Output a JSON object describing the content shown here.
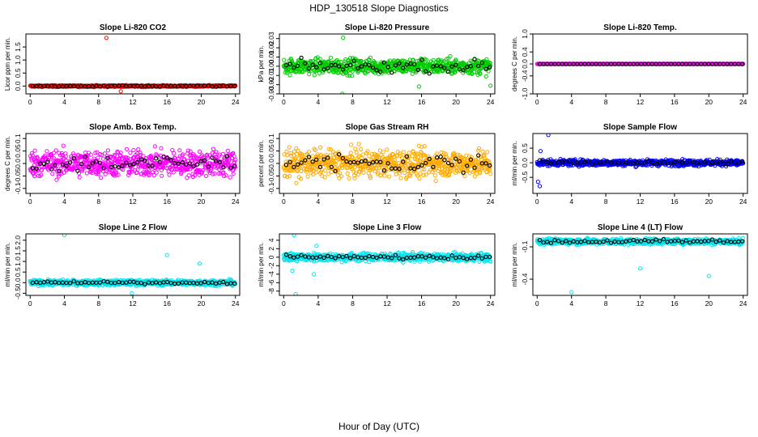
{
  "figure": {
    "title": "HDP_130518  Slope Diagnostics",
    "xlabel": "Hour of Day (UTC)"
  },
  "colors": {
    "overlay": "#000000"
  },
  "chart_data": [
    {
      "type": "scatter",
      "title": "Slope Li-820 CO2",
      "ylabel": "Licor ppm per min.",
      "color": "#ff0000",
      "ylim": [
        -0.3,
        2.0
      ],
      "yticks": [
        0,
        0.5,
        1.0,
        1.5
      ],
      "xlim": [
        -0.5,
        24.5
      ],
      "xticks": [
        0,
        4,
        8,
        12,
        16,
        20,
        24
      ],
      "center": 0,
      "spread": 0.03,
      "overlay_spread": 0.02,
      "outliers": [
        [
          8.9,
          1.85
        ],
        [
          10.6,
          -0.2
        ]
      ]
    },
    {
      "type": "scatter",
      "title": "Slope Li-820 Pressure",
      "ylabel": "kPa per min.",
      "color": "#00cc00",
      "ylim": [
        -0.03,
        0.035
      ],
      "yticks": [
        -0.03,
        -0.02,
        -0.01,
        0.0,
        0.01,
        0.02,
        0.03
      ],
      "xlim": [
        -0.5,
        24.5
      ],
      "xticks": [
        0,
        4,
        8,
        12,
        16,
        20,
        24
      ],
      "center": 0,
      "spread": 0.008,
      "overlay_spread": 0.006,
      "outliers": [
        [
          6.9,
          0.031
        ],
        [
          6.8,
          -0.03
        ],
        [
          15.7,
          -0.022
        ],
        [
          24.0,
          -0.021
        ]
      ]
    },
    {
      "type": "scatter",
      "title": "Slope Li-820 Temp.",
      "ylabel": "degrees C per min.",
      "color": "#ff00ff",
      "ylim": [
        -1.0,
        1.0
      ],
      "yticks": [
        -1.0,
        -0.4,
        0.0,
        0.4,
        1.0
      ],
      "xlim": [
        -0.5,
        24.5
      ],
      "xticks": [
        0,
        4,
        8,
        12,
        16,
        20,
        24
      ],
      "center": 0,
      "spread": 0.0,
      "overlay_spread": 0.0,
      "outliers": []
    },
    {
      "type": "scatter",
      "title": "Slope Amb. Box Temp.",
      "ylabel": "degrees C per min.",
      "color": "#ff00ff",
      "ylim": [
        -0.12,
        0.12
      ],
      "yticks": [
        -0.1,
        -0.05,
        0.0,
        0.05,
        0.1
      ],
      "xlim": [
        -0.5,
        24.5
      ],
      "xticks": [
        0,
        4,
        8,
        12,
        16,
        20,
        24
      ],
      "center": 0,
      "spread": 0.05,
      "overlay_spread": 0.035,
      "outliers": []
    },
    {
      "type": "scatter",
      "title": "Slope Gas Stream RH",
      "ylabel": "percent per min.",
      "color": "#ffaa00",
      "ylim": [
        -0.12,
        0.12
      ],
      "yticks": [
        -0.1,
        -0.05,
        0.0,
        0.05,
        0.1
      ],
      "xlim": [
        -0.5,
        24.5
      ],
      "xticks": [
        0,
        4,
        8,
        12,
        16,
        20,
        24
      ],
      "center": 0,
      "spread": 0.05,
      "overlay_spread": 0.04,
      "outliers": []
    },
    {
      "type": "scatter",
      "title": "Slope Sample Flow",
      "ylabel": "ml/min per min.",
      "color": "#0000ff",
      "ylim": [
        -1.05,
        1.0
      ],
      "yticks": [
        -0.5,
        0.0,
        0.5
      ],
      "xlim": [
        -0.5,
        24.5
      ],
      "xticks": [
        0,
        4,
        8,
        12,
        16,
        20,
        24
      ],
      "center": 0,
      "spread": 0.1,
      "overlay_spread": 0.06,
      "outliers": [
        [
          1.3,
          0.95
        ],
        [
          0.3,
          -0.8
        ],
        [
          0.1,
          -0.65
        ],
        [
          0.4,
          0.4
        ]
      ]
    },
    {
      "type": "scatter",
      "title": "Slope Line 2 Flow",
      "ylabel": "ml/min per min.",
      "color": "#00e5ee",
      "ylim": [
        -0.6,
        2.3
      ],
      "yticks": [
        -0.5,
        0.0,
        0.5,
        1.0,
        1.5,
        2.0
      ],
      "xlim": [
        -0.5,
        24.5
      ],
      "xticks": [
        0,
        4,
        8,
        12,
        16,
        20,
        24
      ],
      "center": 0,
      "spread": 0.12,
      "overlay_spread": 0.05,
      "outliers": [
        [
          4.0,
          2.25
        ],
        [
          16.0,
          1.3
        ],
        [
          19.8,
          0.9
        ],
        [
          11.9,
          -0.5
        ]
      ]
    },
    {
      "type": "scatter",
      "title": "Slope Line 3 Flow",
      "ylabel": "ml/min per min.",
      "color": "#00e5ee",
      "ylim": [
        -9.0,
        5.5
      ],
      "yticks": [
        -8,
        -6,
        -4,
        -2,
        0,
        2,
        4
      ],
      "xlim": [
        -0.5,
        24.5
      ],
      "xticks": [
        0,
        4,
        8,
        12,
        16,
        20,
        24
      ],
      "center": 0,
      "spread": 0.9,
      "overlay_spread": 0.5,
      "outliers": [
        [
          1.4,
          -8.7
        ],
        [
          1.2,
          5.2
        ],
        [
          3.8,
          2.7
        ],
        [
          1.0,
          -3.2
        ],
        [
          3.5,
          -4.0
        ]
      ]
    },
    {
      "type": "scatter",
      "title": "Slope Line 4 (LT) Flow",
      "ylabel": "ml/min per min.",
      "color": "#00e5ee",
      "ylim": [
        -0.55,
        0.02
      ],
      "yticks": [
        -0.4,
        -0.1
      ],
      "xlim": [
        -0.5,
        24.5
      ],
      "xticks": [
        0,
        4,
        8,
        12,
        16,
        20,
        24
      ],
      "center": -0.05,
      "spread": 0.025,
      "overlay_spread": 0.02,
      "outliers": [
        [
          4.0,
          -0.52
        ],
        [
          12.0,
          -0.3
        ],
        [
          20.0,
          -0.37
        ]
      ]
    }
  ]
}
